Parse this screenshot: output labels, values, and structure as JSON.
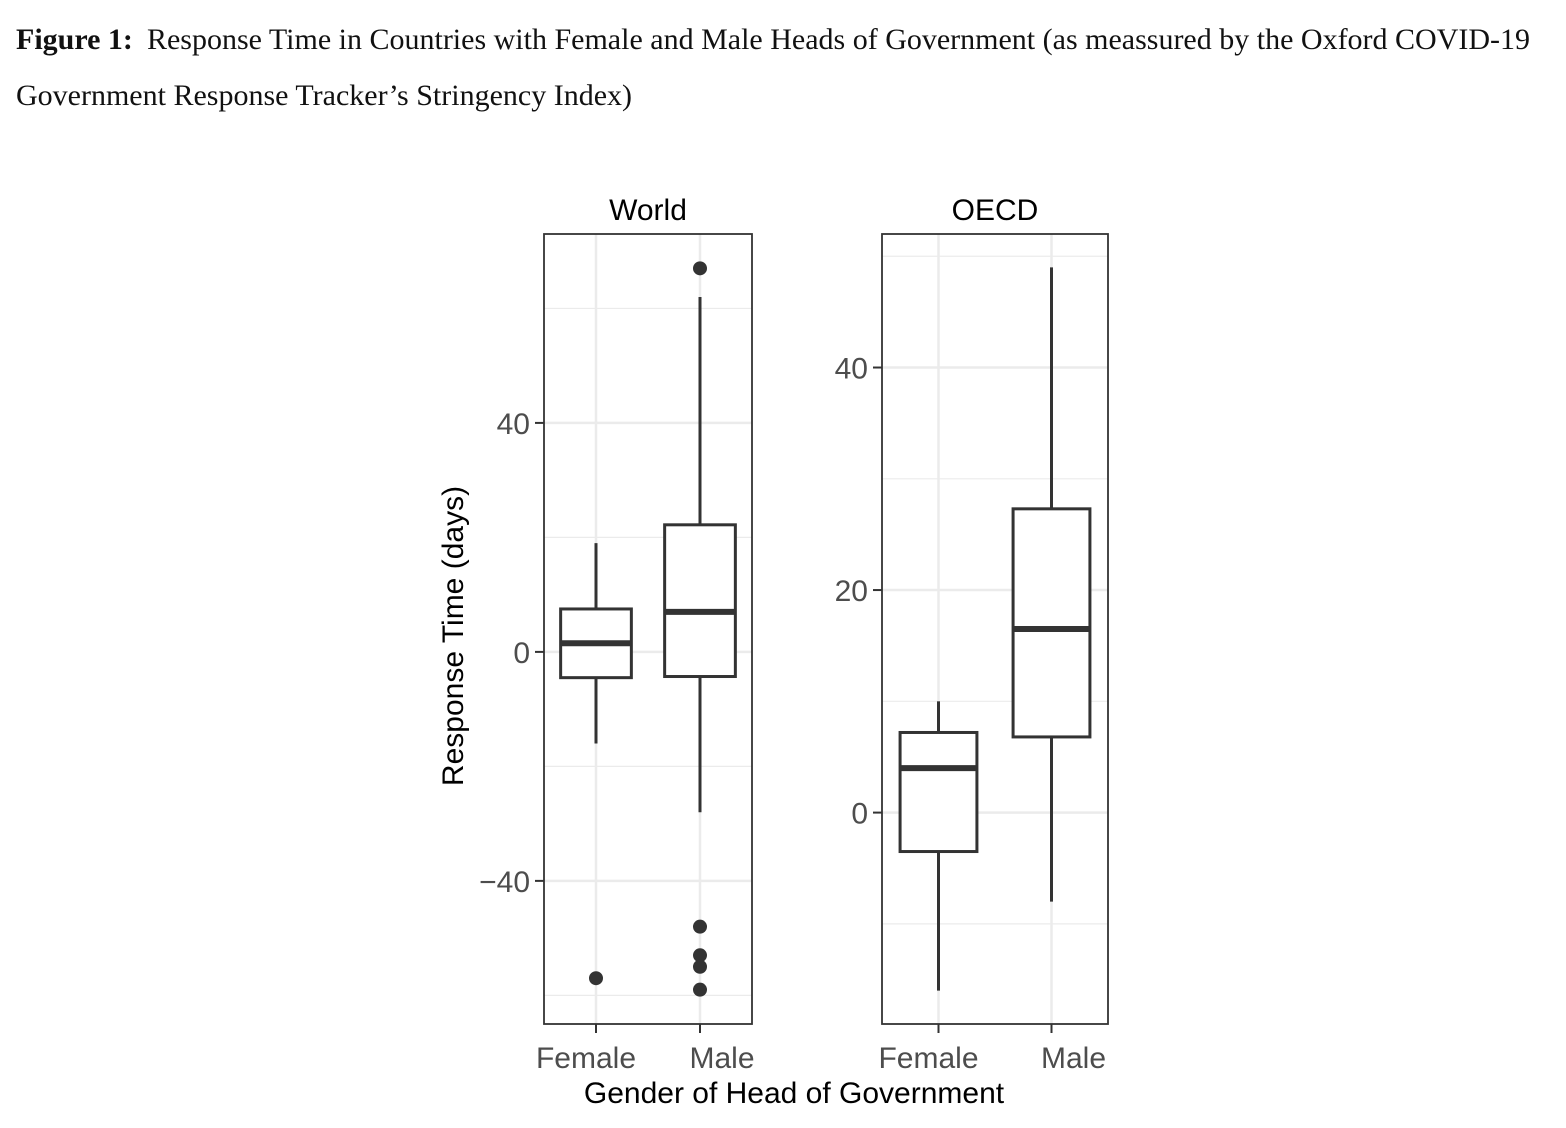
{
  "caption": {
    "label": "Figure 1:",
    "text": "Response Time in Countries with Female and Male Heads of Government (as meassured by the Oxford COVID-19 Government Response Tracker’s Stringency Index)"
  },
  "chart_data": [
    {
      "type": "box",
      "title": "World",
      "categories": [
        "Female",
        "Male"
      ],
      "xlabel": "Gender of Head of Government",
      "ylabel": "Response Time (days)",
      "ylim": [
        -65,
        73
      ],
      "yticks": [
        -40,
        0,
        40
      ],
      "yticklabels": [
        "−40",
        "0",
        "40"
      ],
      "grid": true,
      "boxes": [
        {
          "category": "Female",
          "whisker_low": -16,
          "q1": -4.5,
          "median": 1.5,
          "q3": 7.5,
          "whisker_high": 19,
          "outliers": [
            -57
          ]
        },
        {
          "category": "Male",
          "whisker_low": -28,
          "q1": -4.3,
          "median": 7,
          "q3": 22.2,
          "whisker_high": 62,
          "outliers": [
            67,
            -48,
            -53,
            -55,
            -59
          ]
        }
      ]
    },
    {
      "type": "box",
      "title": "OECD",
      "categories": [
        "Female",
        "Male"
      ],
      "xlabel": "Gender of Head of Government",
      "ylabel": "Response Time (days)",
      "ylim": [
        -19,
        52
      ],
      "yticks": [
        0,
        20,
        40
      ],
      "yticklabels": [
        "0",
        "20",
        "40"
      ],
      "grid": true,
      "boxes": [
        {
          "category": "Female",
          "whisker_low": -16,
          "q1": -3.5,
          "median": 4,
          "q3": 7.2,
          "whisker_high": 10,
          "outliers": []
        },
        {
          "category": "Male",
          "whisker_low": -8,
          "q1": 6.8,
          "median": 16.5,
          "q3": 27.3,
          "whisker_high": 49,
          "outliers": []
        }
      ]
    }
  ]
}
